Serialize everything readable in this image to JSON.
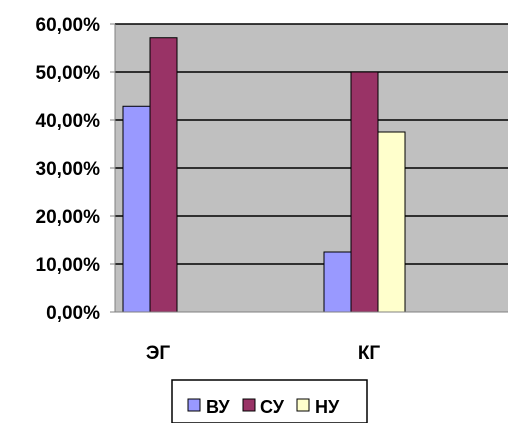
{
  "chart_data": {
    "type": "bar",
    "categories": [
      "ЭГ",
      "КГ"
    ],
    "series": [
      {
        "name": "ВУ",
        "values": [
          42.86,
          12.5
        ],
        "color": "#9999ff"
      },
      {
        "name": "СУ",
        "values": [
          57.14,
          50.0
        ],
        "color": "#993366"
      },
      {
        "name": "НУ",
        "values": [
          0,
          37.5
        ],
        "color": "#ffffcc"
      }
    ],
    "ylim": [
      0,
      60
    ],
    "yticks": [
      0,
      10,
      20,
      30,
      40,
      50,
      60
    ],
    "ytick_labels": [
      "0,00%",
      "10,00%",
      "20,00%",
      "30,00%",
      "40,00%",
      "50,00%",
      "60,00%"
    ],
    "title": "",
    "xlabel": "",
    "ylabel": "",
    "grid": true,
    "plot_background": "#c0c0c0",
    "legend_position": "bottom"
  }
}
